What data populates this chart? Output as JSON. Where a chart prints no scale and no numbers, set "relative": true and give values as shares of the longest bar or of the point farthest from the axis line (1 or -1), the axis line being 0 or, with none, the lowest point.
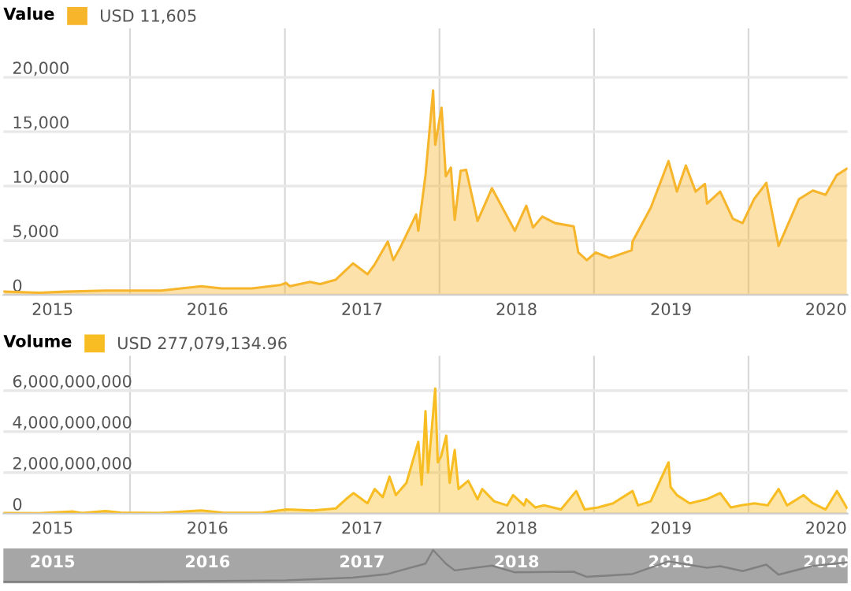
{
  "chart_data": [
    {
      "type": "area",
      "title": "Value",
      "legend": "top left",
      "grid": true,
      "xlim": [
        "2015-03-08",
        "2020-08-22"
      ],
      "ylim": [
        0,
        24500
      ],
      "yticks": [
        {
          "value": 0,
          "label": "0"
        },
        {
          "value": 5000,
          "label": "5,000"
        },
        {
          "value": 10000,
          "label": "10,000"
        },
        {
          "value": 15000,
          "label": "15,000"
        },
        {
          "value": 20000,
          "label": "20,000"
        }
      ],
      "xticks": [
        {
          "value": "2015-07-02",
          "label": "2015"
        },
        {
          "value": "2016-01-01",
          "label": null
        },
        {
          "value": "2016-07-02",
          "label": "2016"
        },
        {
          "value": "2017-01-01",
          "label": null
        },
        {
          "value": "2017-07-02",
          "label": "2017"
        },
        {
          "value": "2018-01-01",
          "label": null
        },
        {
          "value": "2018-07-02",
          "label": "2018"
        },
        {
          "value": "2019-01-01",
          "label": null
        },
        {
          "value": "2019-07-02",
          "label": "2019"
        },
        {
          "value": "2020-01-01",
          "label": null
        },
        {
          "value": "2020-07-02",
          "label": "2020"
        }
      ],
      "series": [
        {
          "name": "USD 11,605",
          "color": "#f7b52c",
          "x": [
            "2015-03-10",
            "2015-06-01",
            "2015-08-01",
            "2015-11-04",
            "2015-12-15",
            "2016-01-15",
            "2016-03-15",
            "2016-06-17",
            "2016-08-05",
            "2016-10-15",
            "2016-12-20",
            "2017-01-04",
            "2017-01-12",
            "2017-03-01",
            "2017-03-25",
            "2017-05-01",
            "2017-06-11",
            "2017-07-15",
            "2017-08-01",
            "2017-09-01",
            "2017-09-14",
            "2017-10-01",
            "2017-11-07",
            "2017-11-12",
            "2017-11-29",
            "2017-12-17",
            "2017-12-22",
            "2018-01-06",
            "2018-01-16",
            "2018-01-28",
            "2018-02-06",
            "2018-02-20",
            "2018-03-05",
            "2018-04-01",
            "2018-05-05",
            "2018-06-28",
            "2018-07-25",
            "2018-08-10",
            "2018-09-01",
            "2018-10-01",
            "2018-11-14",
            "2018-11-25",
            "2018-12-15",
            "2019-01-05",
            "2019-02-07",
            "2019-03-31",
            "2019-04-02",
            "2019-05-15",
            "2019-06-26",
            "2019-07-16",
            "2019-08-06",
            "2019-08-29",
            "2019-09-20",
            "2019-09-25",
            "2019-10-26",
            "2019-11-25",
            "2019-12-18",
            "2020-01-14",
            "2020-02-12",
            "2020-03-12",
            "2020-04-29",
            "2020-06-01",
            "2020-07-01",
            "2020-07-27",
            "2020-08-20"
          ],
          "values": [
            300,
            200,
            300,
            400,
            400,
            400,
            400,
            800,
            600,
            600,
            900,
            1100,
            800,
            1200,
            1000,
            1400,
            2900,
            1900,
            2800,
            4900,
            3200,
            4400,
            7400,
            5900,
            11000,
            18800,
            13800,
            17200,
            10900,
            11700,
            6900,
            11400,
            11500,
            6800,
            9800,
            5900,
            8200,
            6200,
            7200,
            6600,
            6300,
            3900,
            3200,
            3900,
            3400,
            4100,
            4900,
            8000,
            12300,
            9500,
            11900,
            9500,
            10200,
            8400,
            9500,
            7000,
            6600,
            8800,
            10300,
            4500,
            8800,
            9600,
            9200,
            11000,
            11600
          ]
        }
      ]
    },
    {
      "type": "area",
      "title": "Volume",
      "legend": "top left",
      "grid": true,
      "xlim": [
        "2015-03-08",
        "2020-08-22"
      ],
      "ylim": [
        0,
        7700000000
      ],
      "yticks": [
        {
          "value": 0,
          "label": "0"
        },
        {
          "value": 2000000000,
          "label": "2,000,000,000"
        },
        {
          "value": 4000000000,
          "label": "4,000,000,000"
        },
        {
          "value": 6000000000,
          "label": "6,000,000,000"
        }
      ],
      "xticks": [
        {
          "value": "2015-07-02",
          "label": "2015"
        },
        {
          "value": "2016-01-01",
          "label": null
        },
        {
          "value": "2016-07-02",
          "label": "2016"
        },
        {
          "value": "2017-01-01",
          "label": null
        },
        {
          "value": "2017-07-02",
          "label": "2017"
        },
        {
          "value": "2018-01-01",
          "label": null
        },
        {
          "value": "2018-07-02",
          "label": "2018"
        },
        {
          "value": "2019-01-01",
          "label": null
        },
        {
          "value": "2019-07-02",
          "label": "2019"
        },
        {
          "value": "2020-01-01",
          "label": null
        },
        {
          "value": "2020-07-02",
          "label": "2020"
        }
      ],
      "series": [
        {
          "name": "USD 277,079,134.96",
          "color": "#f8bd22",
          "x": [
            "2015-03-10",
            "2015-06-01",
            "2015-08-20",
            "2015-09-10",
            "2015-11-04",
            "2015-12-10",
            "2016-03-10",
            "2016-06-17",
            "2016-08-10",
            "2016-11-10",
            "2017-01-05",
            "2017-03-10",
            "2017-05-01",
            "2017-05-25",
            "2017-06-12",
            "2017-07-15",
            "2017-08-01",
            "2017-08-20",
            "2017-09-05",
            "2017-09-20",
            "2017-10-15",
            "2017-11-12",
            "2017-11-20",
            "2017-11-29",
            "2017-12-05",
            "2017-12-22",
            "2017-12-28",
            "2018-01-05",
            "2018-01-17",
            "2018-01-25",
            "2018-02-06",
            "2018-02-15",
            "2018-03-10",
            "2018-04-01",
            "2018-04-12",
            "2018-05-10",
            "2018-06-10",
            "2018-06-24",
            "2018-07-20",
            "2018-07-25",
            "2018-08-15",
            "2018-09-05",
            "2018-10-15",
            "2018-11-20",
            "2018-12-10",
            "2019-01-10",
            "2019-02-15",
            "2019-04-02",
            "2019-04-15",
            "2019-05-15",
            "2019-06-26",
            "2019-07-01",
            "2019-07-16",
            "2019-08-15",
            "2019-09-24",
            "2019-10-26",
            "2019-11-20",
            "2019-12-15",
            "2020-01-15",
            "2020-02-15",
            "2020-03-12",
            "2020-04-01",
            "2020-05-10",
            "2020-06-01",
            "2020-07-01",
            "2020-07-28",
            "2020-08-20"
          ],
          "values": [
            30000000,
            20000000,
            100000000,
            30000000,
            120000000,
            50000000,
            30000000,
            150000000,
            40000000,
            50000000,
            200000000,
            150000000,
            250000000,
            700000000,
            1000000000,
            500000000,
            1200000000,
            800000000,
            1800000000,
            900000000,
            1500000000,
            3500000000,
            1400000000,
            5000000000,
            2000000000,
            6100000000,
            2500000000,
            2800000000,
            3800000000,
            1500000000,
            3100000000,
            1200000000,
            1600000000,
            700000000,
            1200000000,
            600000000,
            400000000,
            900000000,
            400000000,
            700000000,
            300000000,
            400000000,
            200000000,
            1100000000,
            200000000,
            300000000,
            500000000,
            1100000000,
            400000000,
            600000000,
            2500000000,
            1300000000,
            900000000,
            500000000,
            700000000,
            1000000000,
            300000000,
            400000000,
            500000000,
            400000000,
            1200000000,
            400000000,
            900000000,
            500000000,
            200000000,
            1100000000,
            280000000
          ]
        }
      ]
    },
    {
      "type": "line",
      "relative": true,
      "xlim": [
        "2015-03-08",
        "2020-08-22"
      ],
      "xticks": [
        {
          "value": "2015-07-02",
          "label": "2015"
        },
        {
          "value": "2016-07-02",
          "label": "2016"
        },
        {
          "value": "2017-07-02",
          "label": "2017"
        },
        {
          "value": "2018-07-02",
          "label": "2018"
        },
        {
          "value": "2019-07-02",
          "label": "2019"
        },
        {
          "value": "2020-07-02",
          "label": "2020"
        }
      ],
      "series": [
        {
          "color": "#808080",
          "x": [
            "2015-03-10",
            "2016-01-15",
            "2016-06-17",
            "2017-01-04",
            "2017-06-11",
            "2017-09-01",
            "2017-11-29",
            "2017-12-17",
            "2018-01-16",
            "2018-02-06",
            "2018-05-05",
            "2018-06-28",
            "2018-11-14",
            "2018-12-15",
            "2019-04-02",
            "2019-06-26",
            "2019-09-25",
            "2019-10-26",
            "2019-12-18",
            "2020-02-12",
            "2020-03-12",
            "2020-06-01",
            "2020-08-20"
          ],
          "values": [
            0.02,
            0.02,
            0.04,
            0.06,
            0.15,
            0.26,
            0.58,
            1,
            0.58,
            0.37,
            0.52,
            0.31,
            0.33,
            0.17,
            0.26,
            0.65,
            0.45,
            0.5,
            0.35,
            0.55,
            0.24,
            0.51,
            0.62
          ]
        }
      ]
    }
  ]
}
